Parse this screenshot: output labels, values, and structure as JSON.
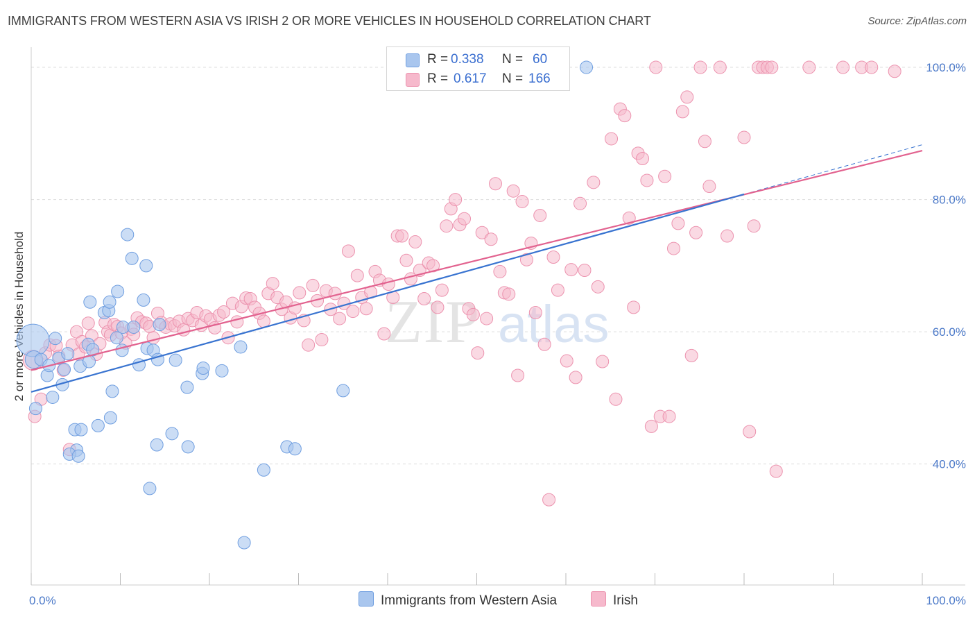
{
  "header": {
    "title": "IMMIGRANTS FROM WESTERN ASIA VS IRISH 2 OR MORE VEHICLES IN HOUSEHOLD CORRELATION CHART",
    "source": "Source: ZipAtlas.com"
  },
  "legend_top": {
    "rows": [
      {
        "r_label": "R =",
        "r_value": "0.338",
        "n_label": "N =",
        "n_value": "60"
      },
      {
        "r_label": "R =",
        "r_value": "0.617",
        "n_label": "N =",
        "n_value": "166"
      }
    ]
  },
  "legend_bottom": {
    "series_a": "Immigrants from Western Asia",
    "series_b": "Irish"
  },
  "watermark": {
    "zip": "ZIP",
    "atlas": "atlas"
  },
  "colors": {
    "blue_fill": "#a9c6ee",
    "blue_stroke": "#6f9ee0",
    "blue_line": "#3873d0",
    "pink_fill": "#f6b9cc",
    "pink_stroke": "#ec92ae",
    "pink_line": "#e2628f",
    "tick_text": "#4a78c8",
    "grid": "#dddddd"
  },
  "chart_data": {
    "type": "scatter",
    "title": "IMMIGRANTS FROM WESTERN ASIA VS IRISH 2 OR MORE VEHICLES IN HOUSEHOLD CORRELATION CHART",
    "xlabel": "",
    "ylabel": "2 or more Vehicles in Household",
    "xlim": [
      0,
      100
    ],
    "ylim": [
      21.7,
      102
    ],
    "x_tick_labels": [
      "0.0%",
      "100.0%"
    ],
    "y_ticks": [
      40,
      60,
      80,
      100
    ],
    "y_tick_labels": [
      "40.0%",
      "60.0%",
      "80.0%",
      "100.0%"
    ],
    "grid": true,
    "legend": "top-center",
    "series": [
      {
        "name": "Immigrants from Western Asia",
        "R": 0.338,
        "N": 60,
        "trend": {
          "x": [
            0,
            80
          ],
          "y": [
            50.9,
            80.8
          ]
        },
        "trend_dashed": {
          "x": [
            80,
            100
          ],
          "y": [
            80.8,
            88.3
          ]
        },
        "points": [
          [
            0.2,
            58.7,
            2.6
          ],
          [
            0.3,
            55.8,
            1.4
          ],
          [
            0.5,
            48.4,
            1.0
          ],
          [
            1.1,
            55.8,
            1.0
          ],
          [
            1.8,
            53.4,
            1.0
          ],
          [
            2.0,
            54.9,
            1.0
          ],
          [
            2.4,
            50.1,
            1.0
          ],
          [
            2.7,
            59.0,
            1.0
          ],
          [
            3.5,
            52.0,
            1.0
          ],
          [
            3.1,
            56.0,
            1.0
          ],
          [
            4.1,
            56.7,
            1.0
          ],
          [
            3.7,
            54.3,
            1.0
          ],
          [
            4.9,
            45.2,
            1.0
          ],
          [
            5.1,
            42.1,
            1.0
          ],
          [
            4.3,
            41.5,
            1.0
          ],
          [
            5.3,
            41.2,
            1.0
          ],
          [
            5.6,
            45.2,
            1.0
          ],
          [
            5.5,
            54.8,
            1.0
          ],
          [
            6.5,
            55.5,
            1.0
          ],
          [
            6.4,
            58.1,
            1.0
          ],
          [
            6.6,
            64.5,
            1.0
          ],
          [
            6.9,
            57.3,
            1.0
          ],
          [
            7.5,
            45.8,
            1.0
          ],
          [
            8.2,
            62.9,
            1.0
          ],
          [
            8.7,
            63.2,
            1.0
          ],
          [
            8.8,
            64.5,
            1.0
          ],
          [
            8.9,
            47.0,
            1.0
          ],
          [
            9.1,
            51.0,
            1.0
          ],
          [
            9.6,
            59.1,
            1.0
          ],
          [
            9.7,
            66.1,
            1.0
          ],
          [
            10.2,
            57.2,
            1.0
          ],
          [
            10.3,
            60.7,
            1.0
          ],
          [
            10.8,
            74.7,
            1.0
          ],
          [
            11.3,
            71.1,
            1.0
          ],
          [
            11.5,
            60.7,
            1.0
          ],
          [
            12.1,
            55.0,
            1.0
          ],
          [
            12.6,
            64.8,
            1.0
          ],
          [
            12.9,
            70.0,
            1.0
          ],
          [
            13.0,
            57.5,
            1.0
          ],
          [
            13.3,
            36.3,
            1.0
          ],
          [
            13.7,
            57.2,
            1.0
          ],
          [
            14.2,
            55.8,
            1.0
          ],
          [
            14.1,
            42.9,
            1.0
          ],
          [
            14.4,
            61.1,
            1.0
          ],
          [
            15.8,
            44.6,
            1.0
          ],
          [
            16.2,
            55.7,
            1.0
          ],
          [
            17.5,
            51.6,
            1.0
          ],
          [
            17.6,
            42.6,
            1.0
          ],
          [
            19.2,
            53.7,
            1.0
          ],
          [
            19.3,
            54.5,
            1.0
          ],
          [
            21.4,
            54.1,
            1.0
          ],
          [
            23.5,
            57.7,
            1.0
          ],
          [
            23.9,
            28.1,
            1.0
          ],
          [
            26.1,
            39.1,
            1.0
          ],
          [
            28.7,
            42.6,
            1.0
          ],
          [
            29.6,
            42.3,
            1.0
          ],
          [
            35.0,
            51.1,
            1.0
          ],
          [
            62.3,
            100.0,
            1.0
          ]
        ]
      },
      {
        "name": "Irish",
        "R": 0.617,
        "N": 166,
        "trend": {
          "x": [
            0,
            100
          ],
          "y": [
            54.2,
            87.4
          ]
        },
        "points": [
          [
            0.2,
            55.7,
            1.6
          ],
          [
            0.4,
            47.2,
            1.0
          ],
          [
            1.1,
            49.8,
            1.0
          ],
          [
            1.6,
            56.8,
            1.0
          ],
          [
            2.1,
            58.0,
            1.0
          ],
          [
            2.8,
            57.9,
            1.0
          ],
          [
            3.1,
            56.3,
            1.0
          ],
          [
            3.6,
            54.2,
            1.0
          ],
          [
            4.3,
            42.2,
            1.0
          ],
          [
            4.6,
            58.0,
            1.0
          ],
          [
            5.1,
            60.0,
            1.0
          ],
          [
            5.3,
            56.6,
            1.0
          ],
          [
            5.7,
            58.5,
            1.0
          ],
          [
            6.1,
            57.7,
            1.0
          ],
          [
            6.4,
            61.3,
            1.0
          ],
          [
            6.8,
            59.4,
            1.0
          ],
          [
            7.3,
            56.6,
            1.0
          ],
          [
            7.7,
            58.2,
            1.0
          ],
          [
            8.3,
            61.4,
            1.0
          ],
          [
            8.6,
            60.0,
            1.0
          ],
          [
            8.9,
            59.5,
            1.0
          ],
          [
            9.3,
            61.1,
            1.0
          ],
          [
            9.7,
            60.8,
            1.0
          ],
          [
            10.1,
            59.8,
            1.0
          ],
          [
            10.6,
            58.3,
            1.0
          ],
          [
            11.2,
            60.4,
            1.0
          ],
          [
            11.5,
            59.6,
            1.0
          ],
          [
            11.9,
            62.1,
            1.0
          ],
          [
            12.4,
            61.5,
            1.0
          ],
          [
            12.9,
            61.3,
            1.0
          ],
          [
            13.3,
            60.8,
            1.0
          ],
          [
            13.7,
            59.1,
            1.0
          ],
          [
            14.2,
            62.8,
            1.0
          ],
          [
            14.6,
            61.4,
            1.0
          ],
          [
            15.1,
            60.7,
            1.0
          ],
          [
            15.6,
            61.2,
            1.0
          ],
          [
            16.1,
            60.9,
            1.0
          ],
          [
            16.6,
            61.6,
            1.0
          ],
          [
            17.1,
            60.3,
            1.0
          ],
          [
            17.6,
            62.0,
            1.0
          ],
          [
            18.1,
            61.7,
            1.0
          ],
          [
            18.6,
            62.9,
            1.0
          ],
          [
            19.1,
            61.0,
            1.0
          ],
          [
            19.6,
            62.4,
            1.0
          ],
          [
            20.1,
            61.9,
            1.0
          ],
          [
            20.6,
            60.6,
            1.0
          ],
          [
            21.1,
            62.5,
            1.0
          ],
          [
            21.6,
            63.0,
            1.0
          ],
          [
            22.1,
            59.1,
            1.0
          ],
          [
            22.6,
            64.3,
            1.0
          ],
          [
            23.1,
            61.5,
            1.0
          ],
          [
            23.6,
            63.8,
            1.0
          ],
          [
            24.1,
            65.1,
            1.0
          ],
          [
            24.6,
            65.0,
            1.0
          ],
          [
            25.1,
            63.7,
            1.0
          ],
          [
            25.6,
            62.8,
            1.0
          ],
          [
            26.1,
            61.6,
            1.0
          ],
          [
            26.6,
            65.8,
            1.0
          ],
          [
            27.1,
            67.3,
            1.0
          ],
          [
            27.6,
            65.2,
            1.0
          ],
          [
            28.1,
            63.4,
            1.0
          ],
          [
            28.6,
            64.5,
            1.0
          ],
          [
            29.1,
            62.1,
            1.0
          ],
          [
            29.6,
            63.6,
            1.0
          ],
          [
            30.1,
            65.9,
            1.0
          ],
          [
            30.6,
            61.7,
            1.0
          ],
          [
            31.1,
            58.0,
            1.0
          ],
          [
            31.6,
            67.0,
            1.0
          ],
          [
            32.1,
            64.7,
            1.0
          ],
          [
            32.6,
            58.8,
            1.0
          ],
          [
            33.1,
            66.2,
            1.0
          ],
          [
            33.6,
            63.4,
            1.0
          ],
          [
            34.1,
            65.8,
            1.0
          ],
          [
            34.6,
            62.0,
            1.0
          ],
          [
            35.1,
            64.3,
            1.0
          ],
          [
            35.6,
            72.2,
            1.0
          ],
          [
            36.1,
            63.1,
            1.0
          ],
          [
            36.6,
            68.5,
            1.0
          ],
          [
            37.1,
            65.2,
            1.0
          ],
          [
            37.6,
            63.5,
            1.0
          ],
          [
            38.1,
            66.0,
            1.0
          ],
          [
            38.6,
            69.1,
            1.0
          ],
          [
            39.1,
            67.8,
            1.0
          ],
          [
            39.6,
            59.7,
            1.0
          ],
          [
            40.1,
            67.2,
            1.0
          ],
          [
            40.6,
            65.2,
            1.0
          ],
          [
            41.1,
            74.5,
            1.0
          ],
          [
            41.6,
            74.5,
            1.0
          ],
          [
            42.1,
            70.8,
            1.0
          ],
          [
            42.6,
            68.0,
            1.0
          ],
          [
            43.1,
            73.6,
            1.0
          ],
          [
            43.6,
            69.3,
            1.0
          ],
          [
            44.1,
            65.0,
            1.0
          ],
          [
            44.6,
            70.4,
            1.0
          ],
          [
            45.1,
            70.0,
            1.0
          ],
          [
            45.6,
            63.7,
            1.0
          ],
          [
            46.1,
            66.3,
            1.0
          ],
          [
            46.6,
            76.0,
            1.0
          ],
          [
            47.1,
            78.6,
            1.0
          ],
          [
            47.6,
            80.0,
            1.0
          ],
          [
            48.1,
            76.2,
            1.0
          ],
          [
            48.6,
            77.1,
            1.0
          ],
          [
            49.1,
            63.5,
            1.0
          ],
          [
            49.6,
            62.6,
            1.0
          ],
          [
            50.1,
            56.8,
            1.0
          ],
          [
            50.6,
            75.0,
            1.0
          ],
          [
            51.1,
            62.0,
            1.0
          ],
          [
            51.6,
            74.0,
            1.0
          ],
          [
            52.1,
            82.4,
            1.0
          ],
          [
            52.6,
            69.1,
            1.0
          ],
          [
            53.1,
            65.9,
            1.0
          ],
          [
            53.6,
            65.7,
            1.0
          ],
          [
            54.1,
            81.3,
            1.0
          ],
          [
            54.6,
            53.4,
            1.0
          ],
          [
            55.1,
            79.7,
            1.0
          ],
          [
            55.6,
            70.9,
            1.0
          ],
          [
            56.1,
            73.4,
            1.0
          ],
          [
            56.6,
            62.9,
            1.0
          ],
          [
            57.1,
            77.6,
            1.0
          ],
          [
            57.6,
            58.1,
            1.0
          ],
          [
            58.1,
            34.6,
            1.0
          ],
          [
            58.6,
            71.3,
            1.0
          ],
          [
            59.1,
            66.3,
            1.0
          ],
          [
            60.1,
            55.6,
            1.0
          ],
          [
            60.6,
            69.4,
            1.0
          ],
          [
            61.1,
            53.1,
            1.0
          ],
          [
            61.6,
            79.4,
            1.0
          ],
          [
            62.1,
            69.3,
            1.0
          ],
          [
            63.1,
            82.6,
            1.0
          ],
          [
            63.6,
            66.8,
            1.0
          ],
          [
            64.1,
            55.5,
            1.0
          ],
          [
            65.1,
            89.2,
            1.0
          ],
          [
            65.6,
            49.8,
            1.0
          ],
          [
            66.1,
            93.7,
            1.0
          ],
          [
            66.6,
            92.7,
            1.0
          ],
          [
            67.1,
            77.2,
            1.0
          ],
          [
            67.6,
            63.7,
            1.0
          ],
          [
            68.1,
            87.0,
            1.0
          ],
          [
            68.6,
            86.2,
            1.0
          ],
          [
            69.1,
            82.9,
            1.0
          ],
          [
            69.6,
            45.7,
            1.0
          ],
          [
            70.1,
            100.0,
            1.0
          ],
          [
            70.6,
            47.2,
            1.0
          ],
          [
            71.1,
            83.5,
            1.0
          ],
          [
            71.6,
            47.2,
            1.0
          ],
          [
            72.1,
            72.6,
            1.0
          ],
          [
            72.6,
            76.4,
            1.0
          ],
          [
            73.1,
            93.3,
            1.0
          ],
          [
            73.6,
            95.5,
            1.0
          ],
          [
            74.1,
            56.4,
            1.0
          ],
          [
            74.6,
            75.0,
            1.0
          ],
          [
            75.1,
            100.0,
            1.0
          ],
          [
            75.6,
            88.8,
            1.0
          ],
          [
            76.1,
            82.0,
            1.0
          ],
          [
            77.3,
            100.0,
            1.0
          ],
          [
            78.1,
            74.5,
            1.0
          ],
          [
            80.0,
            89.4,
            1.0
          ],
          [
            80.6,
            44.9,
            1.0
          ],
          [
            81.1,
            76.0,
            1.0
          ],
          [
            81.6,
            100.0,
            1.0
          ],
          [
            82.1,
            100.0,
            1.0
          ],
          [
            82.6,
            100.0,
            1.0
          ],
          [
            83.1,
            100.0,
            1.0
          ],
          [
            83.6,
            38.9,
            1.0
          ],
          [
            87.3,
            100.0,
            1.0
          ],
          [
            91.1,
            100.0,
            1.0
          ],
          [
            93.2,
            100.0,
            1.0
          ],
          [
            94.3,
            100.0,
            1.0
          ],
          [
            96.9,
            99.4,
            1.0
          ]
        ]
      }
    ]
  }
}
